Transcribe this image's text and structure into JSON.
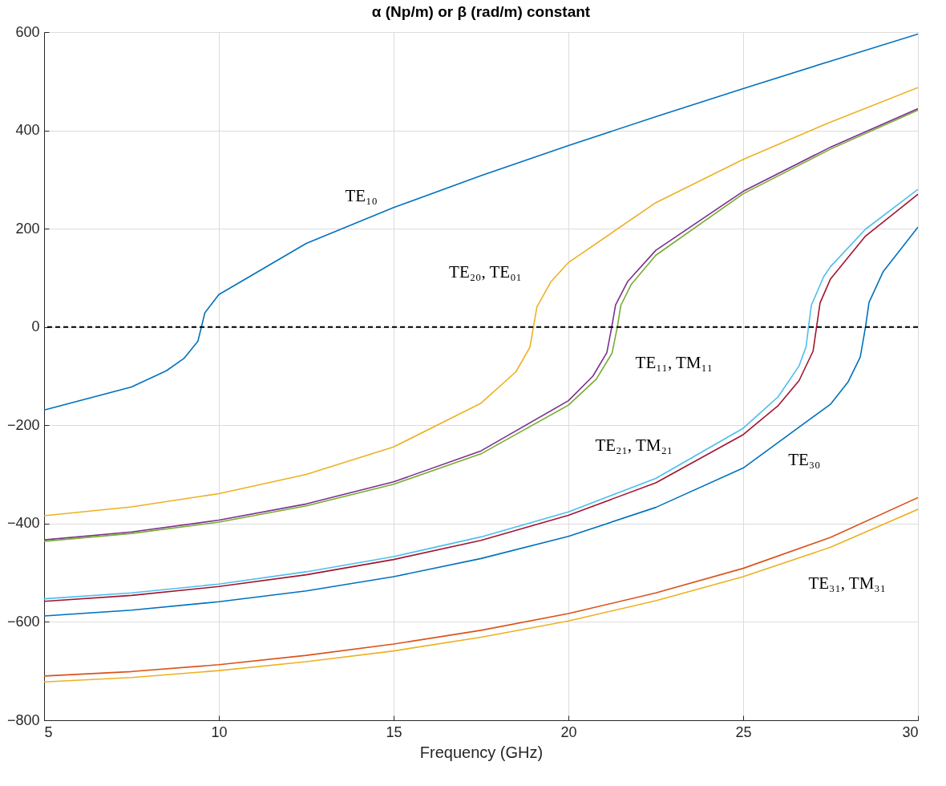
{
  "chart_data": {
    "type": "line",
    "title": "α (Np/m)  or  β (rad/m)  constant",
    "xlabel": "Frequency (GHz)",
    "xlim": [
      5,
      30
    ],
    "xticks": [
      5,
      10,
      15,
      20,
      25,
      30
    ],
    "ylim": [
      -800,
      600
    ],
    "yticks": [
      -800,
      -600,
      -400,
      -200,
      0,
      200,
      400,
      600
    ],
    "grid": true,
    "legend": false,
    "series": [
      {
        "color": "#0072bd",
        "x": [
          5,
          7.5,
          8.5,
          9,
          9.4,
          9.5,
          9.6,
          10,
          12.5,
          15,
          17.5,
          20,
          22.5,
          25,
          27.5,
          30
        ],
        "values": [
          -169,
          -122,
          -89,
          -64,
          -29,
          0,
          29,
          66,
          170,
          243,
          308,
          369,
          428,
          485,
          541,
          596
        ]
      },
      {
        "color": "#edb120",
        "x": [
          5,
          7.5,
          10,
          12.5,
          15,
          17.5,
          18.5,
          18.9,
          19,
          19.1,
          19.5,
          20,
          22.5,
          25,
          27.5,
          30
        ],
        "values": [
          -384,
          -366,
          -339,
          -300,
          -244,
          -155,
          -91,
          -41,
          0,
          41,
          92,
          131,
          253,
          341,
          417,
          487
        ]
      },
      {
        "color": "#7e2f8e",
        "x": [
          5,
          7.5,
          10,
          12.5,
          15,
          17.5,
          20,
          20.7,
          21.1,
          21.24,
          21.35,
          21.7,
          22.5,
          25,
          27.5,
          30
        ],
        "values": [
          -433,
          -417,
          -393,
          -360,
          -315,
          -252,
          -150,
          -100,
          -52,
          0,
          45,
          93,
          156,
          276,
          366,
          444
        ]
      },
      {
        "color": "#77ac30",
        "x": [
          5,
          7.5,
          10,
          12.5,
          15,
          17.5,
          20,
          20.8,
          21.25,
          21.4,
          21.5,
          21.8,
          22.5,
          25,
          27.5,
          30
        ],
        "values": [
          -436,
          -420,
          -397,
          -364,
          -320,
          -258,
          -159,
          -106,
          -53,
          0,
          44,
          87,
          146,
          271,
          362,
          441
        ]
      },
      {
        "color": "#4dbeee",
        "x": [
          5,
          7.5,
          10,
          12.5,
          15,
          17.5,
          20,
          22.5,
          25,
          26,
          26.6,
          26.8,
          26.87,
          26.95,
          27.3,
          27.5,
          28.5,
          30
        ],
        "values": [
          -553,
          -541,
          -523,
          -498,
          -467,
          -427,
          -376,
          -308,
          -206,
          -142,
          -79,
          -40,
          0,
          44,
          102,
          123,
          199,
          280
        ]
      },
      {
        "color": "#a2142f",
        "x": [
          5,
          7.5,
          10,
          12.5,
          15,
          17.5,
          20,
          22.5,
          25,
          26,
          26.6,
          27,
          27.1,
          27.2,
          27.5,
          28.5,
          30
        ],
        "values": [
          -558,
          -546,
          -528,
          -504,
          -473,
          -434,
          -383,
          -317,
          -219,
          -160,
          -109,
          -49,
          0,
          49,
          98,
          185,
          270
        ]
      },
      {
        "color": "#0072bd",
        "x": [
          5,
          7.5,
          10,
          12.5,
          15,
          17.5,
          20,
          22.5,
          25,
          27.5,
          28,
          28.35,
          28.5,
          28.6,
          29,
          30
        ],
        "values": [
          -588,
          -576,
          -559,
          -537,
          -508,
          -471,
          -426,
          -367,
          -287,
          -157,
          -112,
          -61,
          0,
          50,
          112,
          203
        ]
      },
      {
        "color": "#d95319",
        "x": [
          5,
          7.5,
          10,
          12.5,
          15,
          17.5,
          20,
          22.5,
          25,
          27.5,
          30
        ],
        "values": [
          -710,
          -701,
          -687,
          -668,
          -645,
          -617,
          -583,
          -541,
          -491,
          -428,
          -347
        ]
      },
      {
        "color": "#edb120",
        "x": [
          5,
          7.5,
          10,
          12.5,
          15,
          17.5,
          20,
          22.5,
          25,
          27.5,
          30
        ],
        "values": [
          -722,
          -713,
          -699,
          -681,
          -659,
          -631,
          -598,
          -557,
          -508,
          -448,
          -371
        ]
      }
    ],
    "ref_lines": [
      {
        "axis": "y",
        "value": 0,
        "color": "#000000",
        "line_style": "dashed"
      }
    ],
    "annotations": [
      "TE₁₀",
      "TE₂₀, TE₀₁",
      "TE₁₁, TM₁₁",
      "TE₂₁, TM₂₁",
      "TE₃₀",
      "TE₃₁, TM₃₁"
    ]
  }
}
